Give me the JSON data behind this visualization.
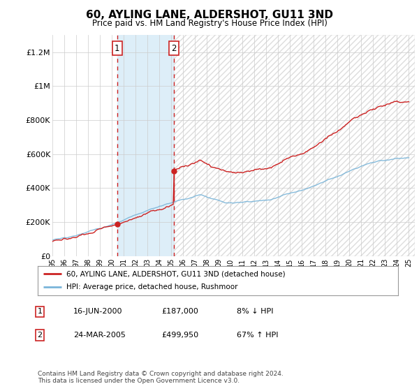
{
  "title": "60, AYLING LANE, ALDERSHOT, GU11 3ND",
  "subtitle": "Price paid vs. HM Land Registry's House Price Index (HPI)",
  "y_ticks": [
    0,
    200000,
    400000,
    600000,
    800000,
    1000000,
    1200000
  ],
  "y_tick_labels": [
    "£0",
    "£200K",
    "£400K",
    "£600K",
    "£800K",
    "£1M",
    "£1.2M"
  ],
  "sale1_date": 2000.46,
  "sale1_price": 187000,
  "sale2_date": 2005.23,
  "sale2_price": 499950,
  "hpi_color": "#7ab5d9",
  "price_color": "#cc2222",
  "shading_color": "#ddeef8",
  "vline_color": "#cc2222",
  "hatch_color": "#cccccc",
  "legend_line1": "60, AYLING LANE, ALDERSHOT, GU11 3ND (detached house)",
  "legend_line2": "HPI: Average price, detached house, Rushmoor",
  "table_row1": [
    "1",
    "16-JUN-2000",
    "£187,000",
    "8% ↓ HPI"
  ],
  "table_row2": [
    "2",
    "24-MAR-2005",
    "£499,950",
    "67% ↑ HPI"
  ],
  "footer": "Contains HM Land Registry data © Crown copyright and database right 2024.\nThis data is licensed under the Open Government Licence v3.0.",
  "background_color": "#ffffff",
  "grid_color": "#cccccc"
}
